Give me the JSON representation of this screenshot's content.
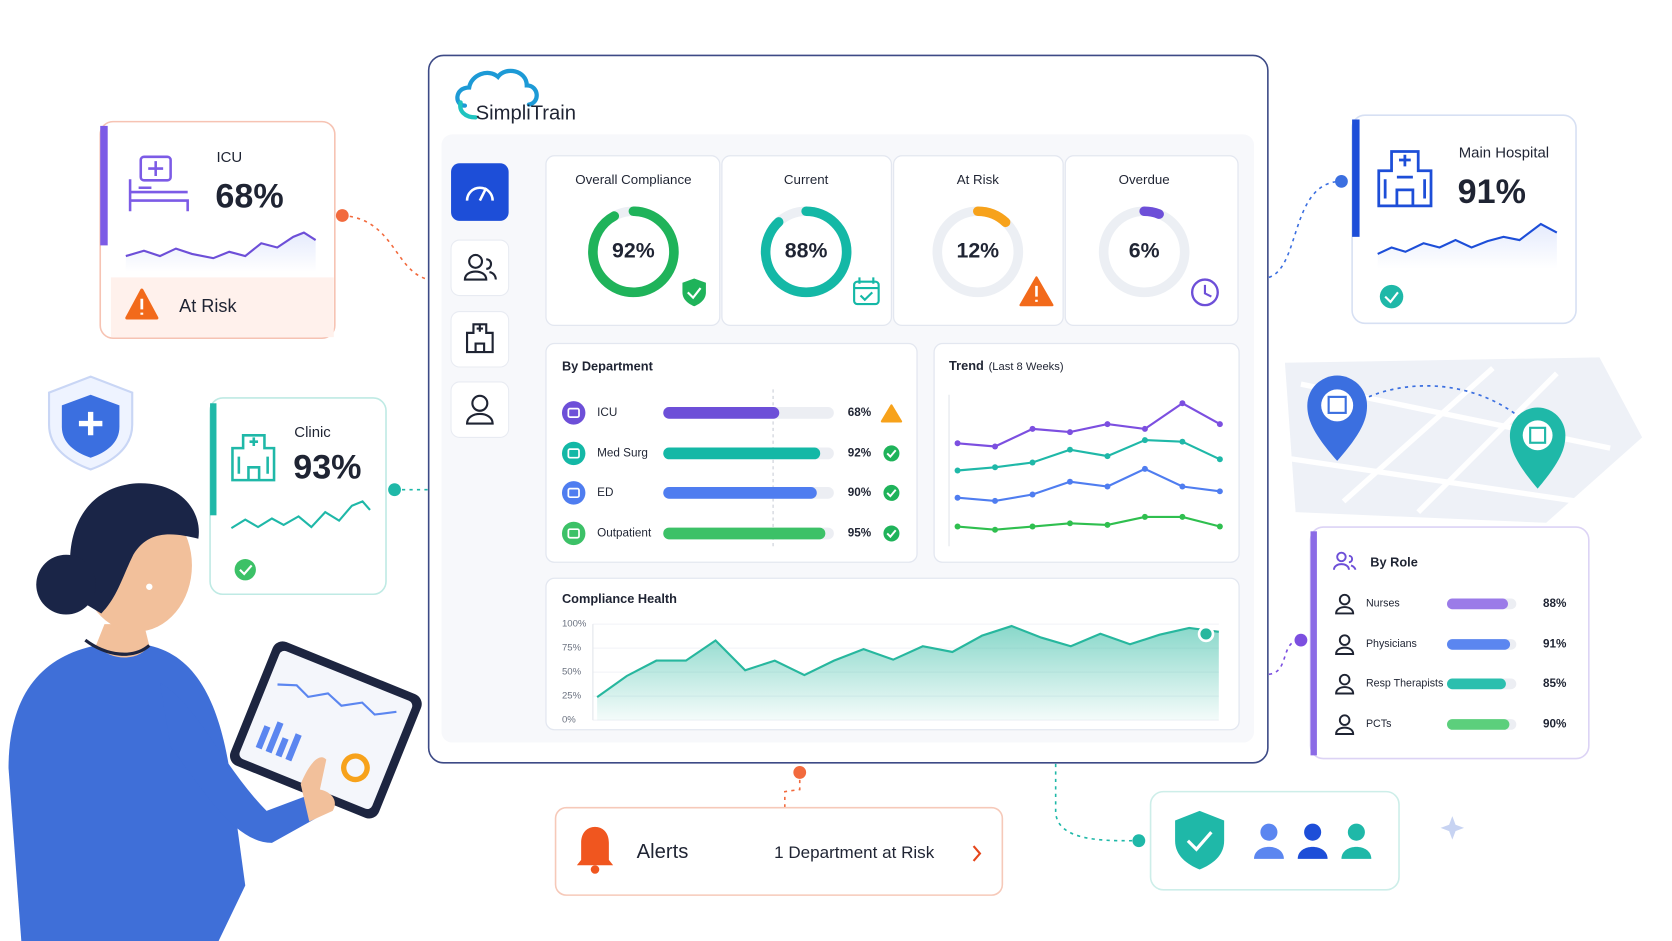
{
  "logo": "SimpliTrain",
  "kpis": [
    {
      "title": "Overall Compliance",
      "value": 92,
      "label": "92%",
      "color": "#1fb35a"
    },
    {
      "title": "Current",
      "value": 88,
      "label": "88%",
      "color": "#14b8a6"
    },
    {
      "title": "At Risk",
      "value": 12,
      "label": "12%",
      "color": "#f7a21b"
    },
    {
      "title": "Overdue",
      "value": 6,
      "label": "6%",
      "color": "#6d4fd8"
    }
  ],
  "by_department": {
    "title": "By Department",
    "rows": [
      {
        "name": "ICU",
        "value": 68,
        "label": "68%",
        "color": "#6d4fd8"
      },
      {
        "name": "Med Surg",
        "value": 92,
        "label": "92%",
        "color": "#14b8a6"
      },
      {
        "name": "ED",
        "value": 90,
        "label": "90%",
        "color": "#4f7df0"
      },
      {
        "name": "Outpatient",
        "value": 95,
        "label": "95%",
        "color": "#3cc167"
      }
    ]
  },
  "trend": {
    "title": "Trend",
    "subtitle": "(Last 8 Weeks)",
    "ylim": [
      0,
      100
    ],
    "series": [
      {
        "color": "#7c4fe0",
        "values": [
          63,
          61,
          72,
          70,
          75,
          72,
          88,
          75
        ]
      },
      {
        "color": "#1fb8a8",
        "values": [
          46,
          48,
          51,
          59,
          55,
          65,
          64,
          53
        ]
      },
      {
        "color": "#4f7df0",
        "values": [
          29,
          27,
          31,
          39,
          36,
          47,
          36,
          33
        ]
      },
      {
        "color": "#2fbf4f",
        "values": [
          11,
          9,
          11,
          13,
          12,
          17,
          17,
          11
        ]
      }
    ]
  },
  "compliance_health": {
    "title": "Compliance Health",
    "ylim": [
      0,
      100
    ],
    "yticks": [
      {
        "value": 100,
        "label": "100%"
      },
      {
        "value": 75,
        "label": "75%"
      },
      {
        "value": 50,
        "label": "50%"
      },
      {
        "value": 25,
        "label": "25%"
      },
      {
        "value": 0,
        "label": "0%"
      }
    ],
    "color": "#27b79e",
    "values": [
      24,
      46,
      62,
      62,
      83,
      52,
      62,
      47,
      62,
      74,
      63,
      77,
      71,
      88,
      98,
      86,
      77,
      90,
      79,
      89,
      96,
      92
    ]
  },
  "side_cards": {
    "icu": {
      "name": "ICU",
      "label": "68%",
      "status": "At Risk"
    },
    "clinic": {
      "name": "Clinic",
      "label": "93%"
    },
    "main_hospital": {
      "name": "Main Hospital",
      "label": "91%"
    }
  },
  "by_role": {
    "title": "By Role",
    "rows": [
      {
        "name": "Nurses",
        "value": 88,
        "label": "88%",
        "color": "#9b7be8"
      },
      {
        "name": "Physicians",
        "value": 91,
        "label": "91%",
        "color": "#5b86f0"
      },
      {
        "name": "Resp Therapists",
        "value": 85,
        "label": "85%",
        "color": "#2bbfae"
      },
      {
        "name": "PCTs",
        "value": 90,
        "label": "90%",
        "color": "#5ccf7c"
      }
    ]
  },
  "alerts": {
    "title": "Alerts",
    "message": "1 Department at Risk"
  }
}
